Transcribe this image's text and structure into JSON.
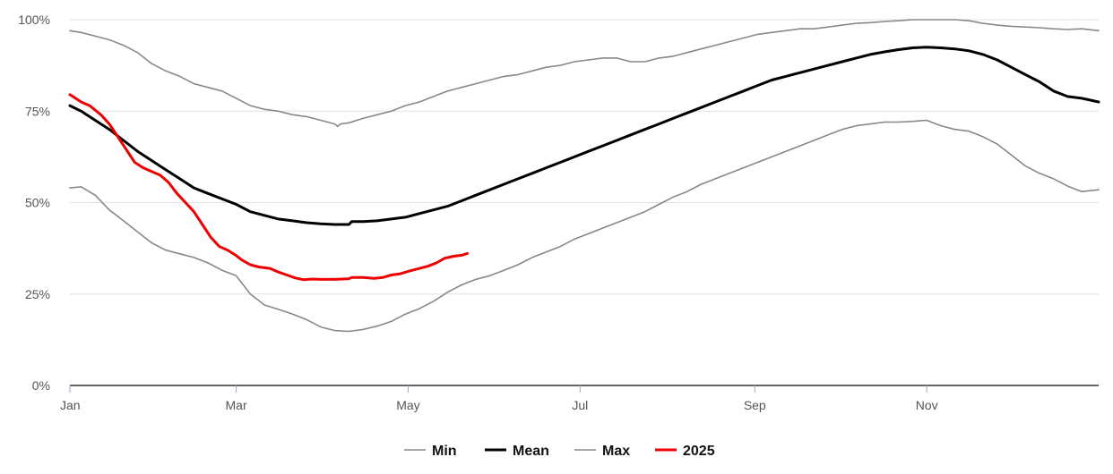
{
  "chart_data": {
    "type": "line",
    "title": "",
    "xlabel": "",
    "ylabel": "",
    "y_ticks": [
      "0%",
      "25%",
      "50%",
      "75%",
      "100%"
    ],
    "x_ticks": [
      "Jan",
      "Mar",
      "May",
      "Jul",
      "Sep",
      "Nov"
    ],
    "x_tick_days": [
      1,
      60,
      121,
      182,
      244,
      305
    ],
    "ylim": [
      0,
      100
    ],
    "xlim": [
      1,
      366
    ],
    "grid": "horizontal",
    "legend_position": "bottom-center",
    "series": [
      {
        "name": "Min",
        "color": "#888888",
        "width": 1.6,
        "points": [
          [
            1,
            54
          ],
          [
            5,
            54.3
          ],
          [
            10,
            52
          ],
          [
            15,
            48
          ],
          [
            20,
            45
          ],
          [
            25,
            42
          ],
          [
            30,
            39
          ],
          [
            35,
            37
          ],
          [
            40,
            36
          ],
          [
            45,
            35
          ],
          [
            50,
            33.5
          ],
          [
            55,
            31.5
          ],
          [
            60,
            30
          ],
          [
            62,
            28
          ],
          [
            65,
            25
          ],
          [
            70,
            22
          ],
          [
            75,
            20.8
          ],
          [
            80,
            19.5
          ],
          [
            85,
            18
          ],
          [
            90,
            16
          ],
          [
            95,
            15
          ],
          [
            100,
            14.8
          ],
          [
            105,
            15.3
          ],
          [
            110,
            16.2
          ],
          [
            115,
            17.5
          ],
          [
            120,
            19.5
          ],
          [
            125,
            21
          ],
          [
            130,
            23
          ],
          [
            135,
            25.5
          ],
          [
            140,
            27.5
          ],
          [
            145,
            29
          ],
          [
            150,
            30
          ],
          [
            155,
            31.5
          ],
          [
            160,
            33
          ],
          [
            165,
            35
          ],
          [
            170,
            36.5
          ],
          [
            175,
            38
          ],
          [
            180,
            40
          ],
          [
            185,
            41.5
          ],
          [
            190,
            43
          ],
          [
            195,
            44.5
          ],
          [
            200,
            46
          ],
          [
            205,
            47.5
          ],
          [
            210,
            49.5
          ],
          [
            215,
            51.5
          ],
          [
            220,
            53
          ],
          [
            225,
            55
          ],
          [
            230,
            56.5
          ],
          [
            235,
            58
          ],
          [
            240,
            59.5
          ],
          [
            245,
            61
          ],
          [
            250,
            62.5
          ],
          [
            255,
            64
          ],
          [
            260,
            65.5
          ],
          [
            265,
            67
          ],
          [
            270,
            68.5
          ],
          [
            275,
            70
          ],
          [
            280,
            71
          ],
          [
            285,
            71.5
          ],
          [
            290,
            72
          ],
          [
            295,
            72
          ],
          [
            300,
            72.2
          ],
          [
            305,
            72.5
          ],
          [
            310,
            71
          ],
          [
            315,
            70
          ],
          [
            320,
            69.5
          ],
          [
            325,
            68
          ],
          [
            330,
            66
          ],
          [
            335,
            63
          ],
          [
            340,
            60
          ],
          [
            345,
            58
          ],
          [
            350,
            56.5
          ],
          [
            355,
            54.5
          ],
          [
            360,
            53
          ],
          [
            366,
            53.5
          ]
        ]
      },
      {
        "name": "Mean",
        "color": "#000000",
        "width": 3,
        "points": [
          [
            1,
            76.5
          ],
          [
            5,
            75
          ],
          [
            10,
            72.5
          ],
          [
            15,
            70
          ],
          [
            20,
            67
          ],
          [
            25,
            64
          ],
          [
            30,
            61.5
          ],
          [
            35,
            59
          ],
          [
            40,
            56.5
          ],
          [
            45,
            54
          ],
          [
            50,
            52.5
          ],
          [
            55,
            51
          ],
          [
            60,
            49.5
          ],
          [
            65,
            47.5
          ],
          [
            70,
            46.5
          ],
          [
            75,
            45.5
          ],
          [
            80,
            45
          ],
          [
            85,
            44.5
          ],
          [
            90,
            44.2
          ],
          [
            95,
            44
          ],
          [
            100,
            44
          ],
          [
            101,
            44.8
          ],
          [
            105,
            44.8
          ],
          [
            110,
            45
          ],
          [
            115,
            45.5
          ],
          [
            120,
            46
          ],
          [
            125,
            47
          ],
          [
            130,
            48
          ],
          [
            135,
            49
          ],
          [
            140,
            50.5
          ],
          [
            145,
            52
          ],
          [
            150,
            53.5
          ],
          [
            155,
            55
          ],
          [
            160,
            56.5
          ],
          [
            165,
            58
          ],
          [
            170,
            59.5
          ],
          [
            175,
            61
          ],
          [
            180,
            62.5
          ],
          [
            185,
            64
          ],
          [
            190,
            65.5
          ],
          [
            195,
            67
          ],
          [
            200,
            68.5
          ],
          [
            205,
            70
          ],
          [
            210,
            71.5
          ],
          [
            215,
            73
          ],
          [
            220,
            74.5
          ],
          [
            225,
            76
          ],
          [
            230,
            77.5
          ],
          [
            235,
            79
          ],
          [
            240,
            80.5
          ],
          [
            245,
            82
          ],
          [
            250,
            83.5
          ],
          [
            255,
            84.5
          ],
          [
            260,
            85.5
          ],
          [
            265,
            86.5
          ],
          [
            270,
            87.5
          ],
          [
            275,
            88.5
          ],
          [
            280,
            89.5
          ],
          [
            285,
            90.5
          ],
          [
            290,
            91.2
          ],
          [
            295,
            91.8
          ],
          [
            300,
            92.3
          ],
          [
            305,
            92.5
          ],
          [
            310,
            92.3
          ],
          [
            315,
            92
          ],
          [
            320,
            91.5
          ],
          [
            325,
            90.5
          ],
          [
            330,
            89
          ],
          [
            335,
            87
          ],
          [
            340,
            85
          ],
          [
            345,
            83
          ],
          [
            350,
            80.5
          ],
          [
            355,
            79
          ],
          [
            360,
            78.5
          ],
          [
            366,
            77.5
          ]
        ]
      },
      {
        "name": "Max",
        "color": "#888888",
        "width": 1.6,
        "points": [
          [
            1,
            97
          ],
          [
            5,
            96.5
          ],
          [
            10,
            95.5
          ],
          [
            15,
            94.5
          ],
          [
            20,
            93
          ],
          [
            25,
            91
          ],
          [
            30,
            88
          ],
          [
            35,
            86
          ],
          [
            40,
            84.5
          ],
          [
            45,
            82.5
          ],
          [
            50,
            81.5
          ],
          [
            55,
            80.5
          ],
          [
            60,
            78.5
          ],
          [
            65,
            76.5
          ],
          [
            70,
            75.5
          ],
          [
            75,
            75
          ],
          [
            80,
            74
          ],
          [
            85,
            73.5
          ],
          [
            90,
            72.5
          ],
          [
            95,
            71.5
          ],
          [
            96,
            70.8
          ],
          [
            97,
            71.5
          ],
          [
            100,
            71.8
          ],
          [
            105,
            73
          ],
          [
            110,
            74
          ],
          [
            115,
            75
          ],
          [
            120,
            76.5
          ],
          [
            125,
            77.5
          ],
          [
            130,
            79
          ],
          [
            135,
            80.5
          ],
          [
            140,
            81.5
          ],
          [
            145,
            82.5
          ],
          [
            150,
            83.5
          ],
          [
            155,
            84.5
          ],
          [
            160,
            85
          ],
          [
            165,
            86
          ],
          [
            170,
            87
          ],
          [
            175,
            87.5
          ],
          [
            180,
            88.5
          ],
          [
            185,
            89
          ],
          [
            190,
            89.5
          ],
          [
            195,
            89.5
          ],
          [
            200,
            88.5
          ],
          [
            205,
            88.5
          ],
          [
            210,
            89.5
          ],
          [
            215,
            90
          ],
          [
            220,
            91
          ],
          [
            225,
            92
          ],
          [
            230,
            93
          ],
          [
            235,
            94
          ],
          [
            240,
            95
          ],
          [
            245,
            96
          ],
          [
            250,
            96.5
          ],
          [
            255,
            97
          ],
          [
            260,
            97.5
          ],
          [
            265,
            97.5
          ],
          [
            270,
            98
          ],
          [
            275,
            98.5
          ],
          [
            280,
            99
          ],
          [
            285,
            99.2
          ],
          [
            290,
            99.5
          ],
          [
            295,
            99.7
          ],
          [
            300,
            100
          ],
          [
            305,
            100
          ],
          [
            310,
            100
          ],
          [
            315,
            100
          ],
          [
            320,
            99.7
          ],
          [
            325,
            99
          ],
          [
            330,
            98.5
          ],
          [
            335,
            98.2
          ],
          [
            340,
            98
          ],
          [
            345,
            97.8
          ],
          [
            350,
            97.5
          ],
          [
            355,
            97.3
          ],
          [
            360,
            97.5
          ],
          [
            366,
            97
          ]
        ]
      },
      {
        "name": "2025",
        "color": "#ee0000",
        "width": 3,
        "points": [
          [
            1,
            79.5
          ],
          [
            5,
            77.5
          ],
          [
            8,
            76.5
          ],
          [
            12,
            74
          ],
          [
            15,
            71.5
          ],
          [
            18,
            68
          ],
          [
            21,
            64.5
          ],
          [
            24,
            61
          ],
          [
            27,
            59.5
          ],
          [
            30,
            58.5
          ],
          [
            33,
            57.5
          ],
          [
            36,
            55.5
          ],
          [
            39,
            52.5
          ],
          [
            42,
            50
          ],
          [
            45,
            47.5
          ],
          [
            48,
            44
          ],
          [
            51,
            40.5
          ],
          [
            54,
            38
          ],
          [
            57,
            37
          ],
          [
            60,
            35.5
          ],
          [
            62,
            34.3
          ],
          [
            65,
            33
          ],
          [
            68,
            32.4
          ],
          [
            72,
            32
          ],
          [
            75,
            31
          ],
          [
            78,
            30.2
          ],
          [
            81,
            29.4
          ],
          [
            84,
            28.9
          ],
          [
            87,
            29.1
          ],
          [
            90,
            29
          ],
          [
            95,
            29
          ],
          [
            100,
            29.2
          ],
          [
            101,
            29.5
          ],
          [
            105,
            29.5
          ],
          [
            109,
            29.3
          ],
          [
            112,
            29.5
          ],
          [
            115,
            30.2
          ],
          [
            118,
            30.5
          ],
          [
            121,
            31.2
          ],
          [
            124,
            31.8
          ],
          [
            128,
            32.6
          ],
          [
            131,
            33.5
          ],
          [
            134,
            34.8
          ],
          [
            137,
            35.3
          ],
          [
            140,
            35.6
          ],
          [
            142,
            36.1
          ]
        ]
      }
    ]
  }
}
